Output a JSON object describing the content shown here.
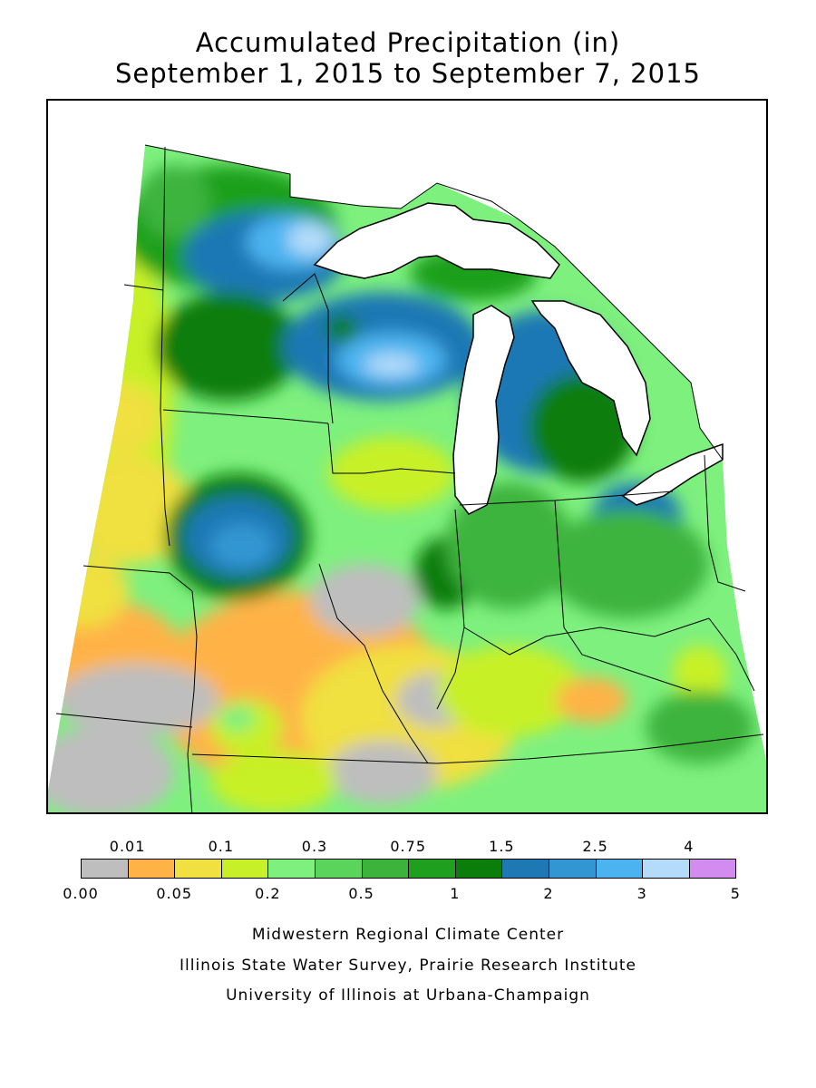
{
  "title": {
    "line1": "Accumulated Precipitation (in)",
    "line2": "September 1, 2015 to September 7, 2015"
  },
  "legend": {
    "top_labels": [
      "0.01",
      "0.1",
      "0.3",
      "0.75",
      "1.5",
      "2.5",
      "4"
    ],
    "bottom_labels": [
      "0.00",
      "0.05",
      "0.2",
      "0.5",
      "1",
      "2",
      "3",
      "5"
    ],
    "colors": [
      "#bebebe",
      "#ffb347",
      "#f0e040",
      "#c8f028",
      "#7ef07e",
      "#5ad45a",
      "#3cb43c",
      "#1ea01e",
      "#0a7d0a",
      "#1e78b4",
      "#3296d2",
      "#4bb4f0",
      "#b4dcfa",
      "#d28cf0"
    ]
  },
  "map": {
    "land_color": "#7ef07e",
    "lake_color": "#ffffff",
    "boundary_color": "#000000"
  },
  "credits": {
    "line1": "Midwestern Regional Climate Center",
    "line2": "Illinois State Water Survey, Prairie Research Institute",
    "line3": "University of Illinois at Urbana-Champaign"
  }
}
